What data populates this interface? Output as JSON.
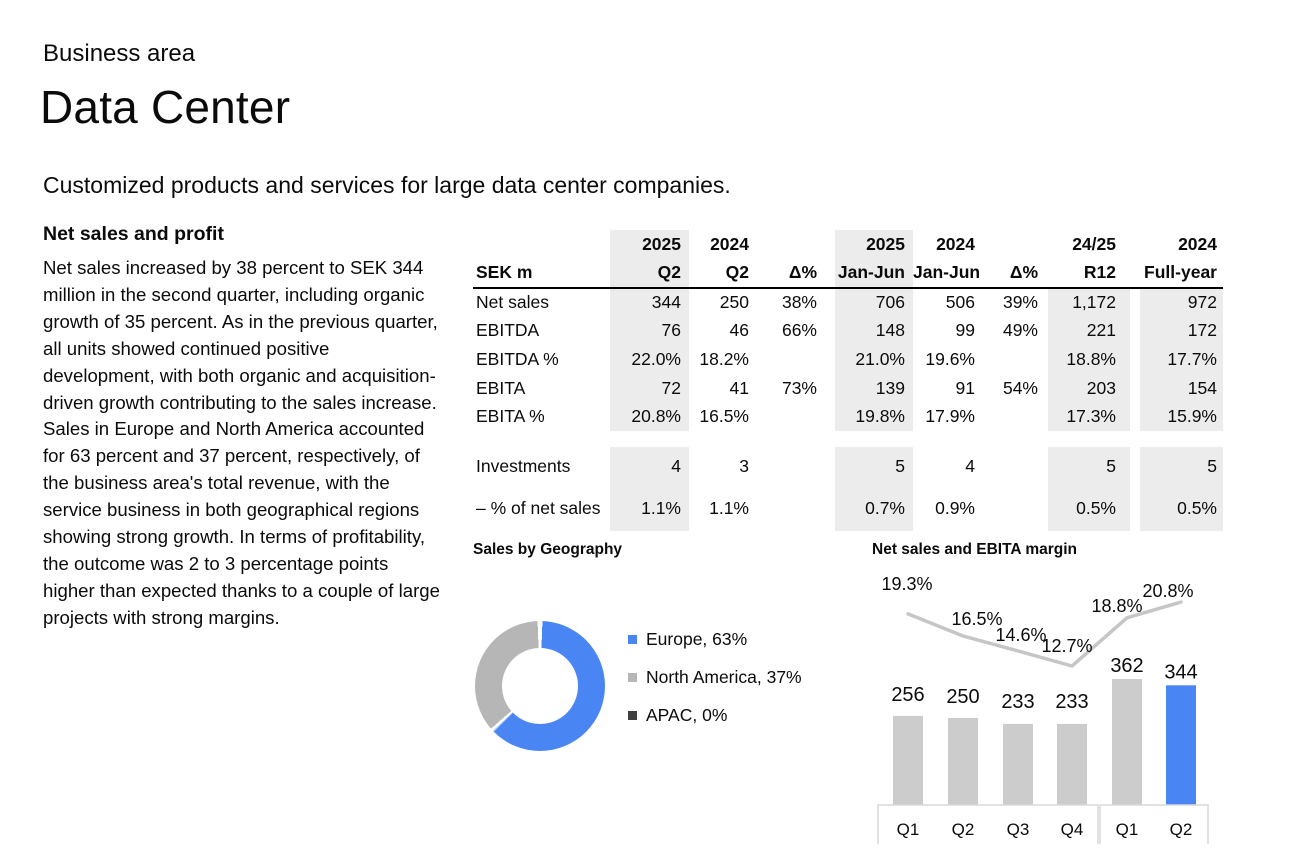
{
  "page": {
    "kicker": "Business area",
    "title": "Data Center",
    "subtitle": "Customized products and services for large data center companies."
  },
  "article": {
    "heading": "Net sales and profit",
    "body": "Net sales increased by 38 percent to SEK 344 million in the second quarter, including organic growth of 35 percent. As in the previous quarter, all units showed continued positive development, with both organic and acquisition-driven growth contributing to the sales increase. Sales in Europe and North America accounted for 63 percent and 37 percent, respectively, of the business area's total revenue, with the service business in both geographical regions showing strong growth. In terms of profitability, the outcome was 2 to 3 percentage points higher than expected thanks to a couple of large projects with strong margins."
  },
  "table": {
    "header_top": [
      "",
      "2025",
      "2024",
      "",
      "2025",
      "2024",
      "",
      "24/25",
      "",
      "2024"
    ],
    "header_bottom": [
      "SEK m",
      "Q2",
      "Q2",
      "Δ%",
      "Jan-Jun",
      "Jan-Jun",
      "Δ%",
      "R12",
      "",
      "Full-year"
    ],
    "rows": [
      {
        "label": "Net sales",
        "values": [
          "344",
          "250",
          "38%",
          "706",
          "506",
          "39%",
          "1,172",
          "972"
        ]
      },
      {
        "label": "EBITDA",
        "values": [
          "76",
          "46",
          "66%",
          "148",
          "99",
          "49%",
          "221",
          "172"
        ]
      },
      {
        "label": "EBITDA %",
        "values": [
          "22.0%",
          "18.2%",
          "",
          "21.0%",
          "19.6%",
          "",
          "18.8%",
          "17.7%"
        ]
      },
      {
        "label": "EBITA",
        "values": [
          "72",
          "41",
          "73%",
          "139",
          "91",
          "54%",
          "203",
          "154"
        ]
      },
      {
        "label": "EBITA %",
        "values": [
          "20.8%",
          "16.5%",
          "",
          "19.8%",
          "17.9%",
          "",
          "17.3%",
          "15.9%"
        ]
      }
    ],
    "investment_rows": [
      {
        "label": "Investments",
        "values": [
          "4",
          "3",
          "",
          "5",
          "4",
          "",
          "5",
          "5"
        ]
      },
      {
        "label": "– % of net sales",
        "values": [
          "1.1%",
          "1.1%",
          "",
          "0.7%",
          "0.9%",
          "",
          "0.5%",
          "0.5%"
        ]
      }
    ]
  },
  "chart_data": [
    {
      "type": "pie",
      "donut": true,
      "title": "Sales by Geography",
      "slices": [
        {
          "name": "Europe",
          "value": 63,
          "color": "#4a86f3",
          "legend_label": "Europe, 63%"
        },
        {
          "name": "North America",
          "value": 37,
          "color": "#b6b6b6",
          "legend_label": "North America, 37%"
        },
        {
          "name": "APAC",
          "value": 0,
          "color": "#3f3f3f",
          "legend_label": "APAC, 0%"
        }
      ],
      "legend_position": "right"
    },
    {
      "type": "bar",
      "title": "Net sales and EBITA margin",
      "categories": [
        "Q1",
        "Q2",
        "Q3",
        "Q4",
        "Q1",
        "Q2"
      ],
      "series": [
        {
          "name": "Net sales",
          "type": "bar",
          "values": [
            256,
            250,
            233,
            233,
            362,
            344
          ]
        },
        {
          "name": "EBITA margin",
          "type": "line",
          "values": [
            19.3,
            16.5,
            14.6,
            12.7,
            18.8,
            20.8
          ],
          "labels": [
            "19.3%",
            "16.5%",
            "14.6%",
            "12.7%",
            "18.8%",
            "20.8%"
          ]
        }
      ],
      "highlight_index": 5,
      "bar_color": "#cccccc",
      "highlight_color": "#4a86f3",
      "line_color": "#c6c6c6",
      "category_groups": [
        {
          "labels": [
            "Q1",
            "Q2",
            "Q3",
            "Q4"
          ],
          "span": [
            0,
            3
          ]
        },
        {
          "labels": [
            "Q1",
            "Q2"
          ],
          "span": [
            4,
            5
          ]
        }
      ],
      "grid": false,
      "legend_position": "none"
    }
  ],
  "colors": {
    "accent_blue": "#4a86f3",
    "bar_gray": "#cccccc",
    "donut_gray": "#b6b6b6",
    "line_gray": "#c6c6c6",
    "apac_dark": "#3f3f3f",
    "table_shade": "#ececec",
    "box_border": "#d9d9d9",
    "text": "#0b0b0b"
  }
}
